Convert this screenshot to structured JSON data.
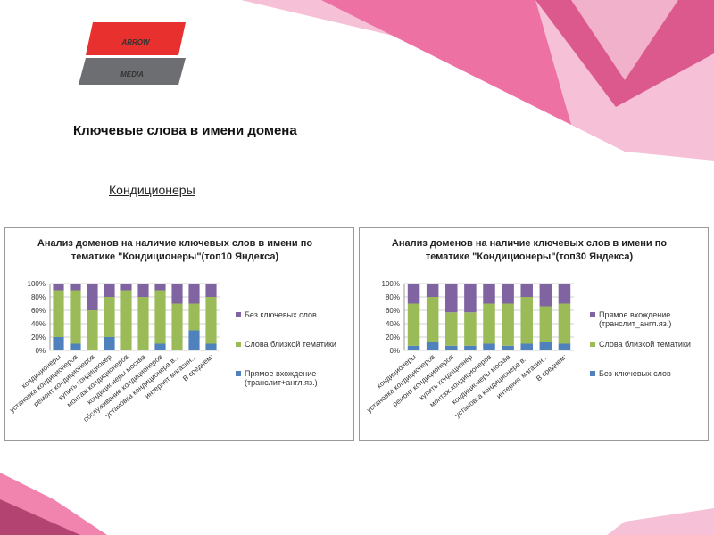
{
  "header": {
    "logo": [
      "ARROW",
      "MEDIA"
    ],
    "title": "Ключевые слова в имени домена",
    "subtitle": "Кондиционеры"
  },
  "chart_data": [
    {
      "type": "bar",
      "stacked": true,
      "title": "Анализ доменов на наличие ключевых слов в имени по тематике \"Кондиционеры\"(топ10 Яндекса)",
      "categories": [
        "кондиционеры",
        "установка кондиционеров",
        "ремонт кондиционеров",
        "купить кондиционер",
        "монтаж кондиционеров",
        "кондиционеры москва",
        "обслуживание кондиционеров",
        "установка кондиционера в...",
        "интернет магазин...",
        "В среднем:"
      ],
      "series": [
        {
          "name": "Прямое вхождение (транслит+англ.яз.)",
          "color": "#4f81bd",
          "values": [
            20,
            10,
            0,
            20,
            0,
            0,
            10,
            0,
            30,
            10
          ]
        },
        {
          "name": "Слова близкой тематики",
          "color": "#9bbb59",
          "values": [
            70,
            80,
            60,
            60,
            90,
            80,
            80,
            70,
            40,
            70
          ]
        },
        {
          "name": "Без ключевых слов",
          "color": "#8064a2",
          "values": [
            10,
            10,
            40,
            20,
            10,
            20,
            10,
            30,
            30,
            20
          ]
        }
      ],
      "ylim": [
        0,
        100
      ],
      "yticks": [
        {
          "value": 0,
          "label": "0%"
        },
        {
          "value": 20,
          "label": "20%"
        },
        {
          "value": 40,
          "label": "40%"
        },
        {
          "value": 60,
          "label": "60%"
        },
        {
          "value": 80,
          "label": "80%"
        },
        {
          "value": 100,
          "label": "100%"
        }
      ],
      "grid": true
    },
    {
      "type": "bar",
      "stacked": true,
      "title": "Анализ доменов на наличие ключевых слов в имени по тематике \"Кондиционеры\"(топ30 Яндекса)",
      "categories": [
        "кондиционеры",
        "установка кондиционеров",
        "ремонт кондиционеров",
        "купить кондиционер",
        "монтаж кондиционеров",
        "кондиционеры москва",
        "установка кондиционера в...",
        "интернет магазин...",
        "В среднем:"
      ],
      "series": [
        {
          "name": "Без ключевых слов",
          "color": "#4f81bd",
          "values": [
            7,
            13,
            7,
            7,
            10,
            7,
            10,
            13,
            10
          ]
        },
        {
          "name": "Слова близкой тематики",
          "color": "#9bbb59",
          "values": [
            63,
            67,
            50,
            50,
            60,
            63,
            70,
            53,
            60
          ]
        },
        {
          "name": "Прямое вхождение (транслит_англ.яз.)",
          "color": "#8064a2",
          "values": [
            30,
            20,
            43,
            43,
            30,
            30,
            20,
            34,
            30
          ]
        }
      ],
      "ylim": [
        0,
        100
      ],
      "yticks": [
        {
          "value": 0,
          "label": "0%"
        },
        {
          "value": 20,
          "label": "20%"
        },
        {
          "value": 40,
          "label": "40%"
        },
        {
          "value": 60,
          "label": "60%"
        },
        {
          "value": 80,
          "label": "80%"
        },
        {
          "value": 100,
          "label": "100%"
        }
      ],
      "grid": true
    }
  ]
}
